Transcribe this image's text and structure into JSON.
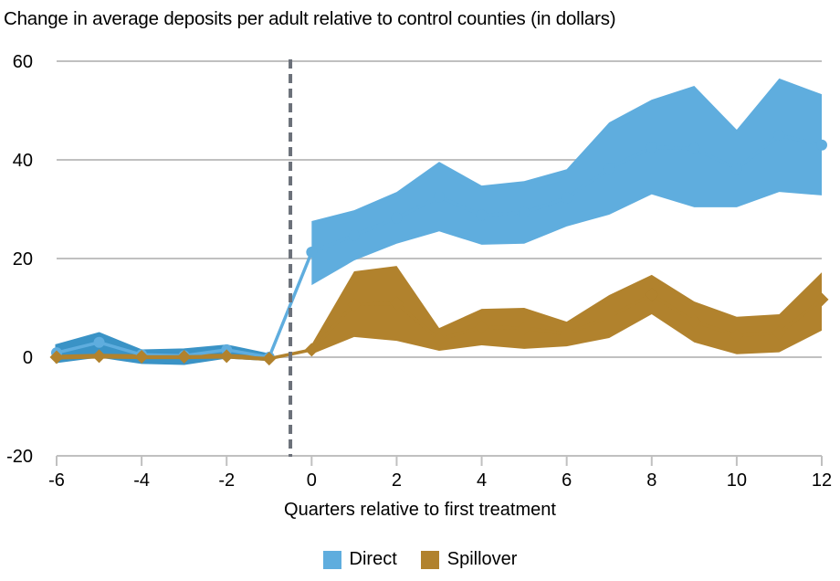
{
  "chart_data": {
    "type": "area",
    "title": "Change in average deposits per adult relative to control counties (in dollars)",
    "xlabel": "Quarters relative to first treatment",
    "ylabel": "",
    "xlim": [
      -6,
      12
    ],
    "ylim": [
      -20,
      60
    ],
    "x_ticks": [
      -6,
      -4,
      -2,
      0,
      2,
      4,
      6,
      8,
      10,
      12
    ],
    "y_ticks": [
      -20,
      0,
      20,
      40,
      60
    ],
    "grid": "horizontal",
    "treatment_line_x": -0.5,
    "legend_position": "bottom",
    "x": [
      -6,
      -5,
      -4,
      -3,
      -2,
      -1,
      0,
      1,
      2,
      3,
      4,
      5,
      6,
      7,
      8,
      9,
      10,
      11,
      12
    ],
    "series": [
      {
        "name": "Direct",
        "color": "#5fadde",
        "pre_band_color": "#3a93c6",
        "estimate": [
          0.9,
          3.0,
          0.5,
          0.3,
          1.5,
          0.0,
          21.3,
          24.7,
          28.2,
          32.5,
          28.8,
          29.3,
          32.3,
          38.2,
          42.6,
          42.3,
          38.2,
          45.0,
          43.0
        ],
        "upper": [
          2.4,
          4.8,
          1.3,
          1.5,
          2.3,
          0.5,
          27.6,
          29.8,
          33.5,
          39.6,
          34.8,
          35.7,
          38.1,
          47.6,
          52.2,
          55.0,
          46.1,
          56.5,
          53.3
        ],
        "lower": [
          -0.9,
          0.2,
          -1.1,
          -1.3,
          0.0,
          -0.5,
          14.6,
          19.6,
          23.0,
          25.5,
          22.8,
          23.0,
          26.5,
          28.9,
          33.0,
          30.4,
          30.4,
          33.5,
          32.8
        ]
      },
      {
        "name": "Spillover",
        "color": "#b1822d",
        "estimate": [
          0.0,
          0.2,
          0.1,
          0.1,
          0.2,
          -0.3,
          1.5,
          10.7,
          10.9,
          3.6,
          6.1,
          5.9,
          4.7,
          8.2,
          12.7,
          7.2,
          4.4,
          4.9,
          11.7
        ],
        "upper": [
          0.3,
          0.5,
          0.4,
          0.4,
          0.5,
          0.0,
          2.6,
          17.4,
          18.5,
          5.9,
          9.8,
          10.0,
          7.2,
          12.6,
          16.7,
          11.3,
          8.2,
          8.7,
          17.2
        ],
        "lower": [
          -0.3,
          -0.1,
          -0.2,
          -0.2,
          -0.1,
          -0.6,
          0.6,
          4.1,
          3.3,
          1.3,
          2.4,
          1.7,
          2.2,
          3.9,
          8.7,
          3.0,
          0.6,
          1.0,
          5.4
        ]
      }
    ]
  },
  "legend": [
    {
      "label": "Direct",
      "color": "#5fadde"
    },
    {
      "label": "Spillover",
      "color": "#b1822d"
    }
  ],
  "colors": {
    "gridline": "#c0c0c0",
    "treatment_line": "#6b7079"
  }
}
